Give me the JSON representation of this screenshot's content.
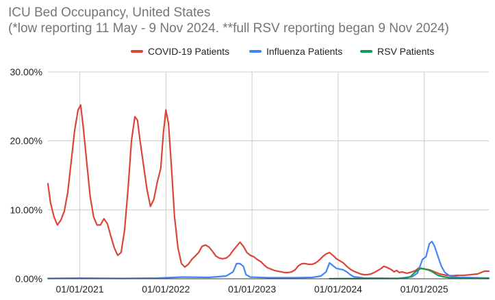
{
  "chart_data": {
    "type": "line",
    "title": "ICU Bed Occupancy, United States",
    "subtitle": "(*low reporting 11 May - 9 Nov 2024. **full RSV reporting began 9 Nov 2024)",
    "xlabel": "",
    "ylabel": "",
    "x_tick_labels": [
      "01/01/2021",
      "01/01/2022",
      "01/01/2023",
      "01/01/2024",
      "01/01/2025"
    ],
    "x_tick_values": [
      2021.0,
      2022.0,
      2023.0,
      2024.0,
      2025.0
    ],
    "xlim": [
      2020.63,
      2025.75
    ],
    "ylim": [
      0,
      30
    ],
    "y_ticks": [
      0,
      10,
      20,
      30
    ],
    "y_tick_labels": [
      "0.00%",
      "10.00%",
      "20.00%",
      "30.00%"
    ],
    "legend_position": "top",
    "grid": true,
    "series": [
      {
        "name": "COVID-19 Patients",
        "color": "#db4437",
        "points": [
          [
            2020.63,
            13.8
          ],
          [
            2020.66,
            11
          ],
          [
            2020.7,
            9
          ],
          [
            2020.74,
            7.8
          ],
          [
            2020.78,
            8.5
          ],
          [
            2020.82,
            9.8
          ],
          [
            2020.86,
            12.5
          ],
          [
            2020.9,
            17
          ],
          [
            2020.94,
            21.5
          ],
          [
            2020.98,
            24.5
          ],
          [
            2021.01,
            25.2
          ],
          [
            2021.04,
            22
          ],
          [
            2021.08,
            17
          ],
          [
            2021.12,
            12
          ],
          [
            2021.16,
            9
          ],
          [
            2021.2,
            7.8
          ],
          [
            2021.24,
            7.8
          ],
          [
            2021.28,
            8.7
          ],
          [
            2021.32,
            8
          ],
          [
            2021.36,
            6.2
          ],
          [
            2021.4,
            4.5
          ],
          [
            2021.44,
            3.4
          ],
          [
            2021.48,
            3.8
          ],
          [
            2021.52,
            7
          ],
          [
            2021.56,
            13
          ],
          [
            2021.6,
            20
          ],
          [
            2021.64,
            23.5
          ],
          [
            2021.67,
            23
          ],
          [
            2021.7,
            20
          ],
          [
            2021.74,
            16.5
          ],
          [
            2021.78,
            13
          ],
          [
            2021.82,
            10.5
          ],
          [
            2021.86,
            11.5
          ],
          [
            2021.9,
            14
          ],
          [
            2021.94,
            16
          ],
          [
            2021.97,
            21
          ],
          [
            2022.0,
            24.5
          ],
          [
            2022.03,
            22.5
          ],
          [
            2022.06,
            17
          ],
          [
            2022.1,
            9
          ],
          [
            2022.14,
            4.5
          ],
          [
            2022.18,
            2.2
          ],
          [
            2022.22,
            1.7
          ],
          [
            2022.26,
            2.1
          ],
          [
            2022.3,
            2.8
          ],
          [
            2022.34,
            3.3
          ],
          [
            2022.38,
            3.8
          ],
          [
            2022.42,
            4.7
          ],
          [
            2022.46,
            4.9
          ],
          [
            2022.5,
            4.6
          ],
          [
            2022.54,
            4
          ],
          [
            2022.58,
            3.3
          ],
          [
            2022.62,
            3
          ],
          [
            2022.66,
            2.9
          ],
          [
            2022.7,
            3
          ],
          [
            2022.74,
            3.4
          ],
          [
            2022.78,
            4.1
          ],
          [
            2022.82,
            4.7
          ],
          [
            2022.86,
            5.3
          ],
          [
            2022.9,
            4.7
          ],
          [
            2022.94,
            3.8
          ],
          [
            2022.98,
            3.4
          ],
          [
            2023.02,
            3.2
          ],
          [
            2023.06,
            2.8
          ],
          [
            2023.1,
            2.5
          ],
          [
            2023.14,
            2
          ],
          [
            2023.18,
            1.6
          ],
          [
            2023.22,
            1.4
          ],
          [
            2023.26,
            1.2
          ],
          [
            2023.3,
            1.1
          ],
          [
            2023.34,
            1
          ],
          [
            2023.38,
            0.9
          ],
          [
            2023.42,
            0.9
          ],
          [
            2023.46,
            1
          ],
          [
            2023.5,
            1.3
          ],
          [
            2023.54,
            1.9
          ],
          [
            2023.58,
            2.2
          ],
          [
            2023.62,
            2.2
          ],
          [
            2023.66,
            2.1
          ],
          [
            2023.7,
            2.1
          ],
          [
            2023.74,
            2.3
          ],
          [
            2023.78,
            2.7
          ],
          [
            2023.82,
            3.2
          ],
          [
            2023.86,
            3.6
          ],
          [
            2023.9,
            3.8
          ],
          [
            2023.94,
            3.4
          ],
          [
            2023.98,
            2.9
          ],
          [
            2024.02,
            2.6
          ],
          [
            2024.06,
            2.3
          ],
          [
            2024.1,
            1.8
          ],
          [
            2024.14,
            1.4
          ],
          [
            2024.18,
            1.1
          ],
          [
            2024.22,
            0.9
          ],
          [
            2024.26,
            0.7
          ],
          [
            2024.3,
            0.6
          ],
          [
            2024.34,
            0.6
          ],
          [
            2024.38,
            0.7
          ],
          [
            2024.42,
            0.9
          ],
          [
            2024.46,
            1.2
          ],
          [
            2024.5,
            1.5
          ],
          [
            2024.53,
            1.8
          ],
          [
            2024.56,
            1.7
          ],
          [
            2024.59,
            1.5
          ],
          [
            2024.62,
            1.3
          ],
          [
            2024.65,
            1
          ],
          [
            2024.68,
            1.2
          ],
          [
            2024.71,
            0.9
          ],
          [
            2024.74,
            1
          ],
          [
            2024.77,
            0.9
          ],
          [
            2024.8,
            0.8
          ],
          [
            2024.83,
            0.9
          ],
          [
            2024.86,
            1
          ],
          [
            2024.9,
            1.2
          ],
          [
            2024.94,
            1.6
          ],
          [
            2024.98,
            1.5
          ],
          [
            2025.02,
            1.4
          ],
          [
            2025.06,
            1.3
          ],
          [
            2025.1,
            1.1
          ],
          [
            2025.14,
            0.9
          ],
          [
            2025.18,
            0.7
          ],
          [
            2025.22,
            0.6
          ],
          [
            2025.26,
            0.5
          ],
          [
            2025.3,
            0.45
          ],
          [
            2025.34,
            0.45
          ],
          [
            2025.38,
            0.5
          ],
          [
            2025.42,
            0.5
          ],
          [
            2025.46,
            0.5
          ],
          [
            2025.5,
            0.55
          ],
          [
            2025.54,
            0.6
          ],
          [
            2025.58,
            0.65
          ],
          [
            2025.62,
            0.7
          ],
          [
            2025.66,
            0.9
          ],
          [
            2025.7,
            1.1
          ],
          [
            2025.75,
            1.1
          ]
        ]
      },
      {
        "name": "Influenza Patients",
        "color": "#4285f4",
        "points": [
          [
            2020.63,
            0.05
          ],
          [
            2021.0,
            0.1
          ],
          [
            2021.5,
            0.05
          ],
          [
            2021.9,
            0.1
          ],
          [
            2022.0,
            0.15
          ],
          [
            2022.2,
            0.25
          ],
          [
            2022.5,
            0.2
          ],
          [
            2022.7,
            0.4
          ],
          [
            2022.78,
            1
          ],
          [
            2022.82,
            2.2
          ],
          [
            2022.86,
            2.2
          ],
          [
            2022.9,
            1.8
          ],
          [
            2022.93,
            0.6
          ],
          [
            2022.98,
            0.25
          ],
          [
            2023.2,
            0.15
          ],
          [
            2023.5,
            0.15
          ],
          [
            2023.7,
            0.2
          ],
          [
            2023.8,
            0.4
          ],
          [
            2023.86,
            1
          ],
          [
            2023.9,
            2.3
          ],
          [
            2023.94,
            1.9
          ],
          [
            2023.98,
            1.5
          ],
          [
            2024.02,
            1.4
          ],
          [
            2024.06,
            1.3
          ],
          [
            2024.1,
            1
          ],
          [
            2024.14,
            0.6
          ],
          [
            2024.18,
            0.3
          ],
          [
            2024.3,
            0.1
          ],
          [
            2024.7,
            0.05
          ],
          [
            2024.86,
            0.3
          ],
          [
            2024.92,
            0.8
          ],
          [
            2024.98,
            2.8
          ],
          [
            2025.02,
            3.2
          ],
          [
            2025.06,
            5.1
          ],
          [
            2025.09,
            5.4
          ],
          [
            2025.12,
            4.7
          ],
          [
            2025.16,
            3.2
          ],
          [
            2025.2,
            1.8
          ],
          [
            2025.24,
            0.9
          ],
          [
            2025.3,
            0.4
          ],
          [
            2025.4,
            0.2
          ],
          [
            2025.75,
            0.1
          ]
        ]
      },
      {
        "name": "RSV Patients",
        "color": "#0f9d58",
        "points": [
          [
            2023.9,
            0.02
          ],
          [
            2024.4,
            0.03
          ],
          [
            2024.7,
            0.05
          ],
          [
            2024.78,
            0.1
          ],
          [
            2024.84,
            0.3
          ],
          [
            2024.88,
            0.8
          ],
          [
            2024.92,
            1.2
          ],
          [
            2024.96,
            1.5
          ],
          [
            2025.0,
            1.4
          ],
          [
            2025.04,
            1.3
          ],
          [
            2025.08,
            1.1
          ],
          [
            2025.12,
            0.8
          ],
          [
            2025.16,
            0.5
          ],
          [
            2025.22,
            0.3
          ],
          [
            2025.3,
            0.15
          ],
          [
            2025.4,
            0.08
          ],
          [
            2025.75,
            0.05
          ]
        ]
      }
    ]
  }
}
